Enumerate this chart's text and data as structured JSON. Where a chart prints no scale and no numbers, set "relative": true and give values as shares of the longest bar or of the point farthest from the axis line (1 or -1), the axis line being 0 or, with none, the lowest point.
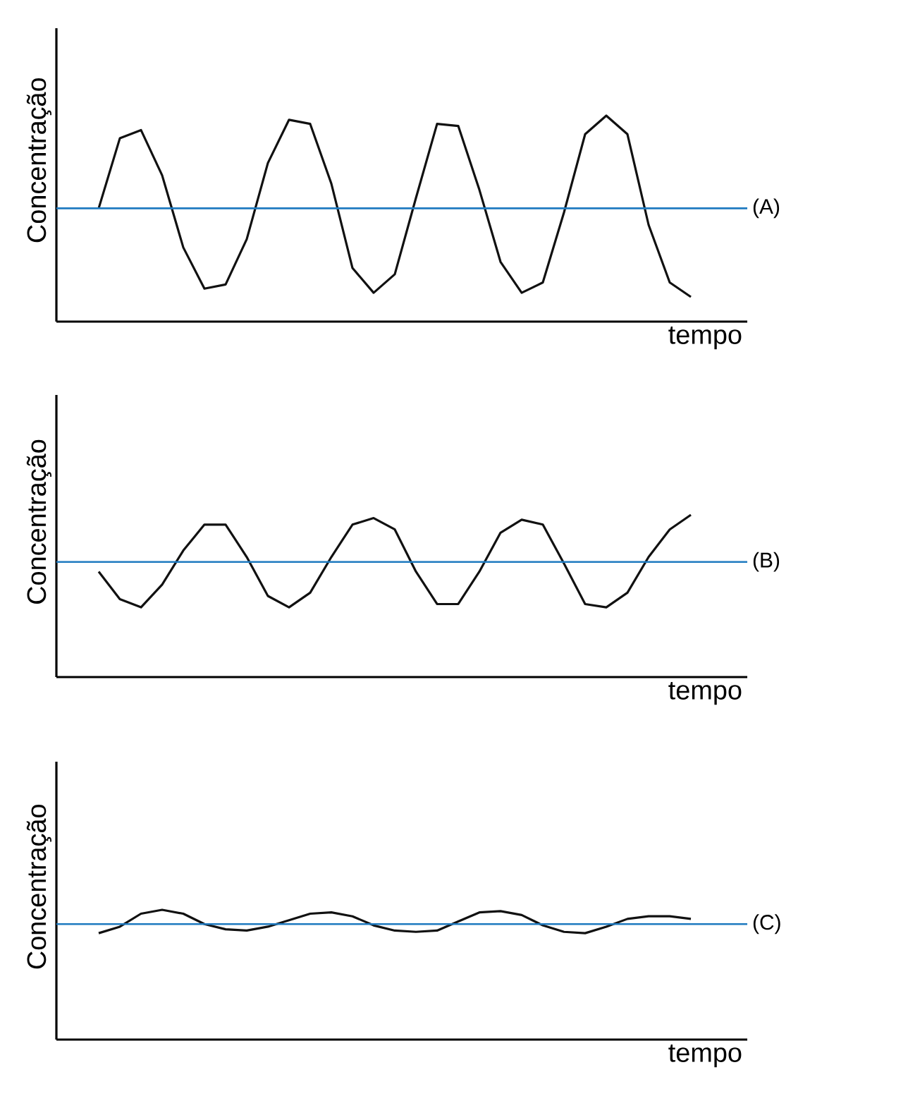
{
  "chart_data": [
    {
      "type": "line",
      "relative": true,
      "xlabel": "tempo",
      "ylabel": "Concentração",
      "tick_labels": false,
      "marker": "none",
      "line_style": "solid",
      "categories": [
        null,
        null,
        null,
        null,
        null,
        null,
        null,
        null,
        null,
        null,
        null,
        null,
        null,
        null,
        null,
        null,
        null,
        null,
        null,
        null,
        null,
        null,
        null,
        null,
        null,
        null,
        null,
        null,
        null
      ],
      "series": [
        {
          "color": "#111111",
          "values": [
            0.55,
            0.89,
            0.93,
            0.71,
            0.36,
            0.16,
            0.18,
            0.4,
            0.77,
            0.98,
            0.96,
            0.67,
            0.26,
            0.14,
            0.23,
            0.6,
            0.96,
            0.95,
            0.64,
            0.29,
            0.14,
            0.19,
            0.53,
            0.91,
            1,
            0.91,
            0.47,
            0.19,
            0.12
          ]
        }
      ],
      "ref_lines": [
        {
          "axis": "y",
          "value": 0.55,
          "label": "(A)",
          "color": "#1f7ac0"
        }
      ]
    },
    {
      "type": "line",
      "relative": true,
      "xlabel": "tempo",
      "ylabel": "Concentração",
      "tick_labels": false,
      "marker": "none",
      "line_style": "solid",
      "categories": [
        null,
        null,
        null,
        null,
        null,
        null,
        null,
        null,
        null,
        null,
        null,
        null,
        null,
        null,
        null,
        null,
        null,
        null,
        null,
        null,
        null,
        null,
        null,
        null,
        null,
        null,
        null,
        null,
        null
      ],
      "series": [
        {
          "color": "#111111",
          "values": [
            0.65,
            0.48,
            0.43,
            0.57,
            0.78,
            0.94,
            0.94,
            0.74,
            0.5,
            0.43,
            0.52,
            0.74,
            0.94,
            0.98,
            0.91,
            0.65,
            0.45,
            0.45,
            0.65,
            0.89,
            0.97,
            0.94,
            0.7,
            0.45,
            0.43,
            0.52,
            0.74,
            0.91,
            1
          ]
        }
      ],
      "ref_lines": [
        {
          "axis": "y",
          "value": 0.71,
          "label": "(B)",
          "color": "#1f7ac0"
        }
      ]
    },
    {
      "type": "line",
      "relative": true,
      "xlabel": "tempo",
      "ylabel": "Concentração",
      "tick_labels": false,
      "marker": "none",
      "line_style": "solid",
      "categories": [
        null,
        null,
        null,
        null,
        null,
        null,
        null,
        null,
        null,
        null,
        null,
        null,
        null,
        null,
        null,
        null,
        null,
        null,
        null,
        null,
        null,
        null,
        null,
        null,
        null,
        null,
        null,
        null,
        null
      ],
      "series": [
        {
          "color": "#111111",
          "values": [
            0.82,
            0.87,
            0.97,
            1,
            0.97,
            0.89,
            0.85,
            0.84,
            0.87,
            0.92,
            0.97,
            0.98,
            0.95,
            0.88,
            0.84,
            0.83,
            0.84,
            0.91,
            0.98,
            0.99,
            0.96,
            0.88,
            0.83,
            0.82,
            0.87,
            0.93,
            0.95,
            0.95,
            0.93
          ]
        }
      ],
      "ref_lines": [
        {
          "axis": "y",
          "value": 0.89,
          "label": "(C)",
          "color": "#1f7ac0"
        }
      ]
    }
  ]
}
